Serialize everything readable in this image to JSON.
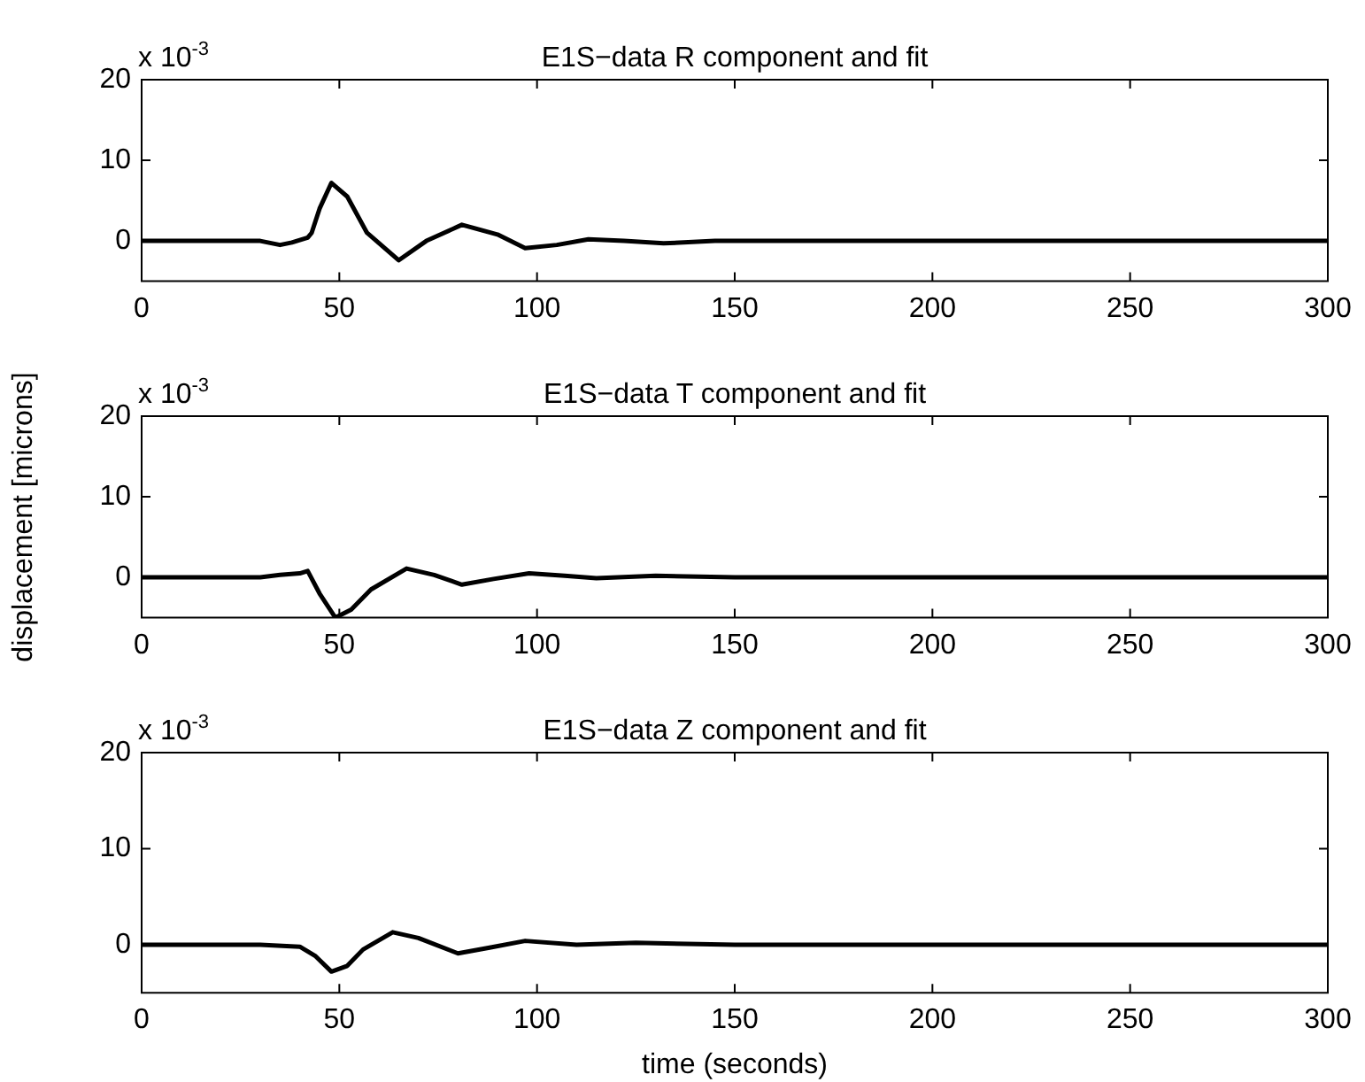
{
  "chart_data": [
    {
      "type": "line",
      "title": "E1S−data R component and fit",
      "annotations": [
        "x 10$^{-3}$"
      ],
      "color": "#000000",
      "xlim": [
        0,
        300
      ],
      "xticks": [
        0,
        50,
        100,
        150,
        200,
        250,
        300
      ],
      "ylim": [
        -5,
        20
      ],
      "yticks": [
        0,
        10,
        20
      ],
      "grid": false,
      "x": [
        0,
        30,
        35,
        38,
        42,
        43,
        45,
        48,
        52,
        57,
        65,
        72,
        81,
        90,
        97,
        105,
        113,
        122,
        132,
        145,
        160,
        300
      ],
      "values": [
        0,
        0,
        -0.5,
        -0.2,
        0.4,
        1,
        4,
        7.2,
        5.5,
        1,
        -2.4,
        0,
        2,
        0.8,
        -0.9,
        -0.5,
        0.2,
        0,
        -0.3,
        0,
        0,
        0
      ]
    },
    {
      "type": "line",
      "title": "E1S−data T component and fit",
      "ylabel": "displacement [microns]",
      "annotations": [
        "x 10$^{-3}$"
      ],
      "color": "#000000",
      "xlim": [
        0,
        300
      ],
      "xticks": [
        0,
        50,
        100,
        150,
        200,
        250,
        300
      ],
      "ylim": [
        -5,
        20
      ],
      "yticks": [
        0,
        10,
        20
      ],
      "grid": false,
      "x": [
        0,
        30,
        35,
        40,
        42,
        45,
        49,
        53,
        58,
        67,
        74,
        81,
        89,
        98,
        107,
        115,
        130,
        150,
        300
      ],
      "values": [
        0,
        0,
        0.3,
        0.5,
        0.8,
        -2,
        -5,
        -4,
        -1.5,
        1.1,
        0.3,
        -0.9,
        -0.2,
        0.5,
        0.2,
        -0.1,
        0.2,
        0,
        0
      ]
    },
    {
      "type": "line",
      "title": "E1S−data Z component and fit",
      "xlabel": "time (seconds)",
      "annotations": [
        "x 10$^{-3}$"
      ],
      "color": "#000000",
      "xlim": [
        0,
        300
      ],
      "xticks": [
        0,
        50,
        100,
        150,
        200,
        250,
        300
      ],
      "ylim": [
        -5,
        20
      ],
      "yticks": [
        0,
        10,
        20
      ],
      "grid": false,
      "x": [
        0,
        30,
        40,
        44,
        48,
        52,
        56,
        63.5,
        70,
        80,
        88,
        97,
        110,
        125,
        150,
        300
      ],
      "values": [
        0,
        0,
        -0.2,
        -1.2,
        -2.8,
        -2.2,
        -0.5,
        1.3,
        0.7,
        -0.9,
        -0.3,
        0.4,
        0,
        0.2,
        0,
        0
      ]
    }
  ]
}
